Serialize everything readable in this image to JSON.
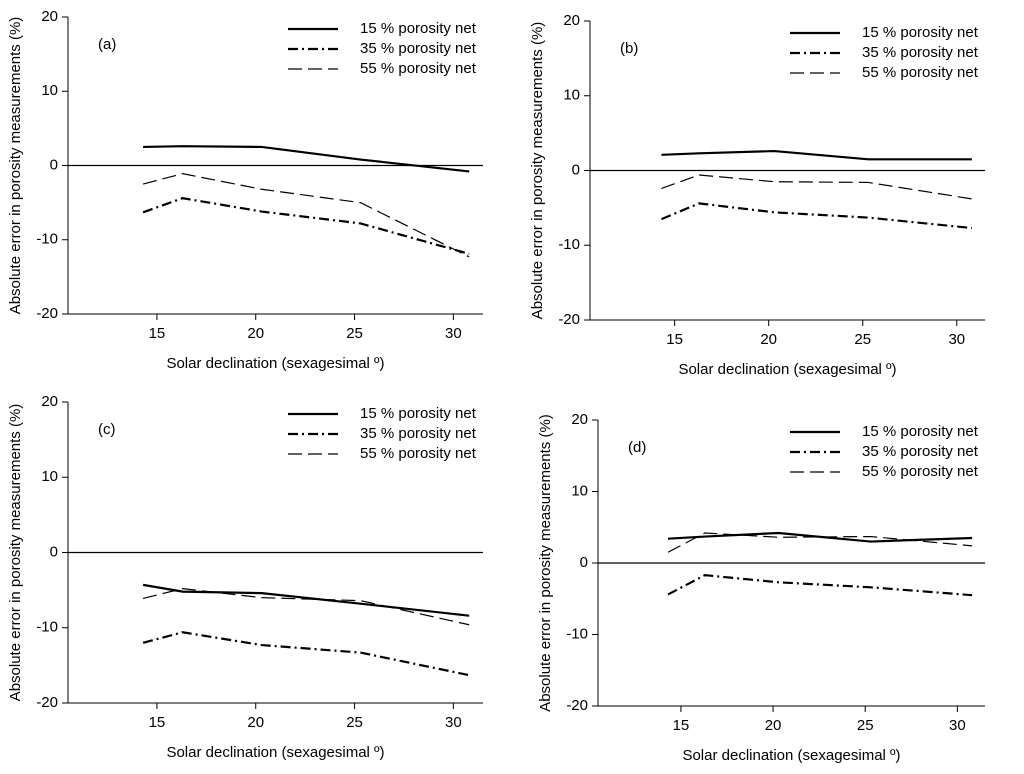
{
  "chart_data": [
    {
      "type": "line",
      "panel": "(a)",
      "xlabel": "Solar declination (sexagesimal º)",
      "ylabel": "Absolute error in porosity measurements (%)",
      "x": [
        14.3,
        16.3,
        20.3,
        25.3,
        30.8
      ],
      "xlim": [
        10.5,
        31.5
      ],
      "xticks": [
        15,
        20,
        25,
        30
      ],
      "ylim": [
        -20,
        20
      ],
      "yticks": [
        -20,
        -10,
        0,
        10,
        20
      ],
      "series": [
        {
          "name": "15 % porosity net",
          "color": "#000000",
          "dash": "solid",
          "values": [
            2.5,
            2.6,
            2.5,
            0.8,
            -0.8
          ]
        },
        {
          "name": "35 % porosity net",
          "color": "#000000",
          "dash": "dashdot",
          "values": [
            -6.3,
            -4.4,
            -6.2,
            -7.8,
            -11.9
          ]
        },
        {
          "name": "55 % porosity net",
          "color": "#000000",
          "dash": "dashed",
          "values": [
            -2.5,
            -1.1,
            -3.2,
            -5.0,
            -12.3
          ]
        }
      ]
    },
    {
      "type": "line",
      "panel": "(b)",
      "xlabel": "Solar declination (sexagesimal º)",
      "ylabel": "Absolute error in porosity measurements (%)",
      "x": [
        14.3,
        16.3,
        20.3,
        25.3,
        30.8
      ],
      "xlim": [
        10.5,
        31.5
      ],
      "xticks": [
        15,
        20,
        25,
        30
      ],
      "ylim": [
        -20,
        20
      ],
      "yticks": [
        -20,
        -10,
        0,
        10,
        20
      ],
      "series": [
        {
          "name": "15 % porosity net",
          "color": "#000000",
          "dash": "solid",
          "values": [
            2.1,
            2.3,
            2.6,
            1.5,
            1.5
          ]
        },
        {
          "name": "35 % porosity net",
          "color": "#000000",
          "dash": "dashdot",
          "values": [
            -6.5,
            -4.4,
            -5.6,
            -6.3,
            -7.7
          ]
        },
        {
          "name": "55 % porosity net",
          "color": "#000000",
          "dash": "dashed",
          "values": [
            -2.4,
            -0.6,
            -1.5,
            -1.6,
            -3.8
          ]
        }
      ]
    },
    {
      "type": "line",
      "panel": "(c)",
      "xlabel": "Solar declination (sexagesimal º)",
      "ylabel": "Absolute error in porosity measurements (%)",
      "x": [
        14.3,
        16.3,
        20.3,
        25.3,
        30.8
      ],
      "xlim": [
        10.5,
        31.5
      ],
      "xticks": [
        15,
        20,
        25,
        30
      ],
      "ylim": [
        -20,
        20
      ],
      "yticks": [
        -20,
        -10,
        0,
        10,
        20
      ],
      "series": [
        {
          "name": "15 % porosity net",
          "color": "#000000",
          "dash": "solid",
          "values": [
            -4.3,
            -5.2,
            -5.4,
            -6.8,
            -8.4
          ]
        },
        {
          "name": "35 % porosity net",
          "color": "#000000",
          "dash": "dashdot",
          "values": [
            -12.0,
            -10.6,
            -12.3,
            -13.3,
            -16.3
          ]
        },
        {
          "name": "55 % porosity net",
          "color": "#000000",
          "dash": "dashed",
          "values": [
            -6.1,
            -4.8,
            -6.0,
            -6.4,
            -9.6
          ]
        }
      ]
    },
    {
      "type": "line",
      "panel": "(d)",
      "xlabel": "Solar declination (sexagesimal º)",
      "ylabel": "Absolute error in porosity measurements (%)",
      "x": [
        14.3,
        16.3,
        20.3,
        25.3,
        30.8
      ],
      "xlim": [
        10.5,
        31.5
      ],
      "xticks": [
        15,
        20,
        25,
        30
      ],
      "ylim": [
        -20,
        20
      ],
      "yticks": [
        -20,
        -10,
        0,
        10,
        20
      ],
      "series": [
        {
          "name": "15 % porosity net",
          "color": "#000000",
          "dash": "solid",
          "values": [
            3.4,
            3.7,
            4.2,
            3.0,
            3.5
          ]
        },
        {
          "name": "35 % porosity net",
          "color": "#000000",
          "dash": "dashdot",
          "values": [
            -4.4,
            -1.7,
            -2.7,
            -3.4,
            -4.5
          ]
        },
        {
          "name": "55 % porosity net",
          "color": "#000000",
          "dash": "dashed",
          "values": [
            1.5,
            4.2,
            3.6,
            3.7,
            2.4
          ]
        }
      ]
    }
  ]
}
